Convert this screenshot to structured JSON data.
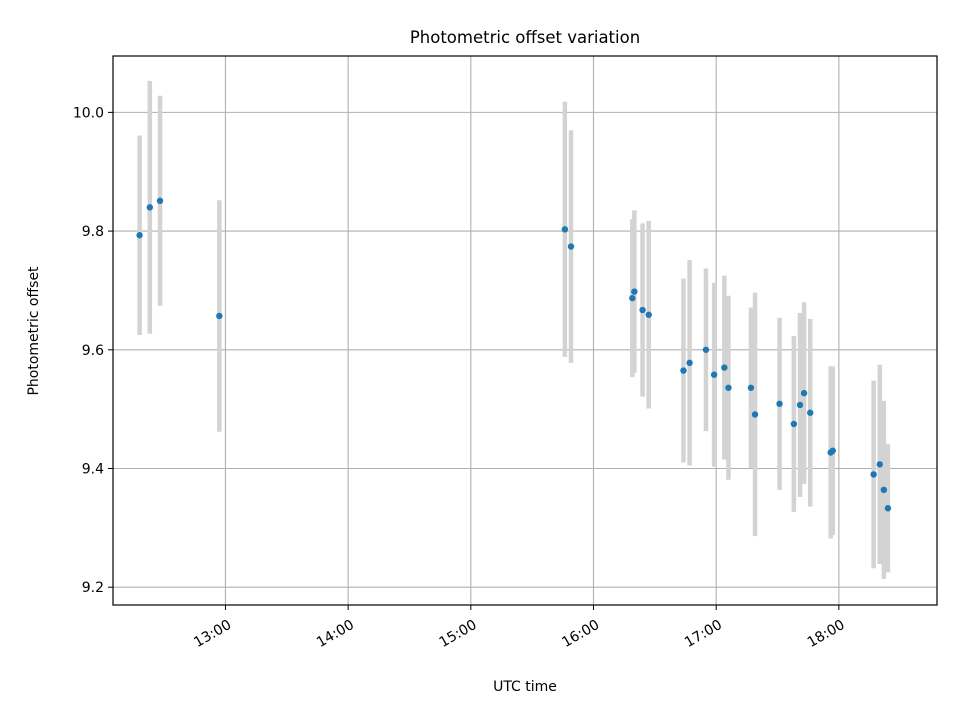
{
  "chart_data": {
    "type": "scatter",
    "title": "Photometric offset variation",
    "xlabel": "UTC time",
    "ylabel": "Photometric offset",
    "xlim": [
      "12:05",
      "18:48"
    ],
    "ylim": [
      9.17,
      10.095
    ],
    "xticks": [
      "13:00",
      "14:00",
      "15:00",
      "16:00",
      "17:00",
      "18:00"
    ],
    "yticks": [
      "9.2",
      "9.4",
      "9.6",
      "9.8",
      "10.0"
    ],
    "grid": true,
    "colors": {
      "point": "#1f77b4",
      "errorbar": "#d3d3d3",
      "grid": "#b0b0b0",
      "axes": "#000000"
    },
    "points": [
      {
        "x": "12:18",
        "y": 9.793,
        "err": 0.168
      },
      {
        "x": "12:23",
        "y": 9.84,
        "err": 0.213
      },
      {
        "x": "12:28",
        "y": 9.851,
        "err": 0.177
      },
      {
        "x": "12:57",
        "y": 9.657,
        "err": 0.195
      },
      {
        "x": "15:46",
        "y": 9.803,
        "err": 0.215
      },
      {
        "x": "15:49",
        "y": 9.774,
        "err": 0.196
      },
      {
        "x": "16:19",
        "y": 9.687,
        "err": 0.133
      },
      {
        "x": "16:20",
        "y": 9.698,
        "err": 0.137
      },
      {
        "x": "16:24",
        "y": 9.667,
        "err": 0.146
      },
      {
        "x": "16:27",
        "y": 9.659,
        "err": 0.158
      },
      {
        "x": "16:44",
        "y": 9.565,
        "err": 0.155
      },
      {
        "x": "16:47",
        "y": 9.578,
        "err": 0.173
      },
      {
        "x": "16:55",
        "y": 9.6,
        "err": 0.137
      },
      {
        "x": "16:59",
        "y": 9.558,
        "err": 0.155
      },
      {
        "x": "17:04",
        "y": 9.57,
        "err": 0.155
      },
      {
        "x": "17:06",
        "y": 9.536,
        "err": 0.155
      },
      {
        "x": "17:17",
        "y": 9.536,
        "err": 0.135
      },
      {
        "x": "17:19",
        "y": 9.491,
        "err": 0.205
      },
      {
        "x": "17:31",
        "y": 9.509,
        "err": 0.145
      },
      {
        "x": "17:38",
        "y": 9.475,
        "err": 0.148
      },
      {
        "x": "17:41",
        "y": 9.507,
        "err": 0.155
      },
      {
        "x": "17:43",
        "y": 9.527,
        "err": 0.153
      },
      {
        "x": "17:46",
        "y": 9.494,
        "err": 0.158
      },
      {
        "x": "17:56",
        "y": 9.427,
        "err": 0.145
      },
      {
        "x": "17:57",
        "y": 9.43,
        "err": 0.142
      },
      {
        "x": "18:17",
        "y": 9.39,
        "err": 0.158
      },
      {
        "x": "18:20",
        "y": 9.407,
        "err": 0.168
      },
      {
        "x": "18:22",
        "y": 9.364,
        "err": 0.15
      },
      {
        "x": "18:24",
        "y": 9.333,
        "err": 0.108
      }
    ]
  }
}
